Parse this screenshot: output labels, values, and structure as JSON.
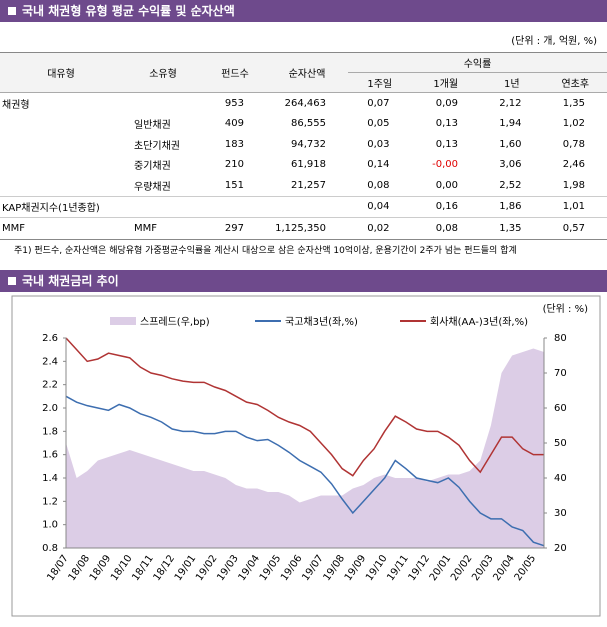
{
  "sections": [
    {
      "title": "국내 채권형 유형 평균 수익률 및 순자산액"
    },
    {
      "title": "국내 채권금리 추이"
    }
  ],
  "table": {
    "unit": "(단위 : 개, 억원, %)",
    "headers": [
      "대유형",
      "소유형",
      "펀드수",
      "순자산액",
      "수익률"
    ],
    "subheaders": [
      "1주일",
      "1개월",
      "1년",
      "연초후"
    ],
    "rows": [
      [
        "채권형",
        null,
        "953",
        "264,463",
        "0,07",
        "0,09",
        "2,12",
        "1,35"
      ],
      [
        null,
        "일반채권",
        "409",
        "86,555",
        "0,05",
        "0,13",
        "1,94",
        "1,02"
      ],
      [
        null,
        "초단기채권",
        "183",
        "94,732",
        "0,03",
        "0,13",
        "1,60",
        "0,78"
      ],
      [
        null,
        "중기채권",
        "210",
        "61,918",
        "0,14",
        "-0,00",
        "3,06",
        "2,46"
      ],
      [
        null,
        "우량채권",
        "151",
        "21,257",
        "0,08",
        "0,00",
        "2,52",
        "1,98"
      ],
      [
        "KAP채권지수(1년종합)",
        null,
        null,
        null,
        "0,04",
        "0,16",
        "1,86",
        "1,01"
      ],
      [
        "MMF",
        "MMF",
        "297",
        "1,125,350",
        "0,02",
        "0,08",
        "1,35",
        "0,57"
      ]
    ]
  },
  "note": "주1) 펀드수, 순자산액은 해당유형 가중평균수익률을 계산시 대상으로 삼은 순자산액 10억이상, 운용기간이 2주가 넘는 펀드들의 합계",
  "chart_data": {
    "type": "line",
    "unit": "(단위 : %)",
    "categories": [
      "18/07",
      null,
      "18/08",
      null,
      "18/09",
      null,
      "18/10",
      null,
      "18/11",
      null,
      "18/12",
      null,
      "19/01",
      null,
      "19/02",
      null,
      "19/03",
      null,
      "19/04",
      null,
      "19/05",
      null,
      "19/06",
      null,
      "19/07",
      null,
      "19/08",
      null,
      "19/09",
      null,
      "19/10",
      null,
      "19/11",
      null,
      "19/12",
      null,
      "20/01",
      null,
      "20/02",
      null,
      "20/03",
      null,
      "20/04",
      null,
      "20/05",
      null
    ],
    "series": [
      {
        "name": "스프레드(우,bp)",
        "type": "area",
        "axis": "y2",
        "color": "#dccde6",
        "values": [
          50,
          40,
          42,
          45,
          46,
          47,
          48,
          47,
          46,
          45,
          44,
          43,
          42,
          42,
          41,
          40,
          38,
          37,
          37,
          36,
          36,
          35,
          33,
          34,
          35,
          35,
          35,
          37,
          38,
          40,
          41,
          40,
          40,
          40,
          39,
          40,
          41,
          41,
          42,
          45,
          55,
          70,
          75,
          76,
          77,
          76
        ]
      },
      {
        "name": "국고채3년(좌,%)",
        "type": "line",
        "color": "#3d6eb0",
        "values": [
          2.1,
          2.05,
          2.02,
          2.0,
          1.98,
          2.03,
          2.0,
          1.95,
          1.92,
          1.88,
          1.82,
          1.8,
          1.8,
          1.78,
          1.78,
          1.8,
          1.8,
          1.75,
          1.72,
          1.73,
          1.68,
          1.62,
          1.55,
          1.5,
          1.45,
          1.35,
          1.22,
          1.1,
          1.2,
          1.3,
          1.4,
          1.55,
          1.48,
          1.4,
          1.38,
          1.36,
          1.4,
          1.32,
          1.2,
          1.1,
          1.05,
          1.05,
          0.98,
          0.95,
          0.85,
          0.82
        ]
      },
      {
        "name": "회사채(AA-)3년(좌,%)",
        "type": "line",
        "color": "#b03434",
        "values": [
          2.6,
          2.5,
          2.4,
          2.42,
          2.47,
          2.45,
          2.43,
          2.35,
          2.3,
          2.28,
          2.25,
          2.23,
          2.22,
          2.22,
          2.18,
          2.15,
          2.1,
          2.05,
          2.03,
          1.98,
          1.92,
          1.88,
          1.85,
          1.8,
          1.7,
          1.6,
          1.48,
          1.42,
          1.55,
          1.65,
          1.8,
          1.93,
          1.88,
          1.82,
          1.8,
          1.8,
          1.75,
          1.68,
          1.55,
          1.45,
          1.6,
          1.75,
          1.75,
          1.65,
          1.6,
          1.6
        ]
      }
    ],
    "ylim": [
      0.8,
      2.6
    ],
    "yticks": [
      0.8,
      {
        "value": 1,
        "label": "1.0"
      },
      1.2,
      1.4,
      1.6,
      1.8,
      {
        "value": 2,
        "label": "2.0"
      },
      2.2,
      2.4,
      2.6
    ],
    "y2lim": [
      20,
      80
    ],
    "y2ticks": [
      20,
      30,
      40,
      50,
      60,
      70,
      80
    ]
  }
}
